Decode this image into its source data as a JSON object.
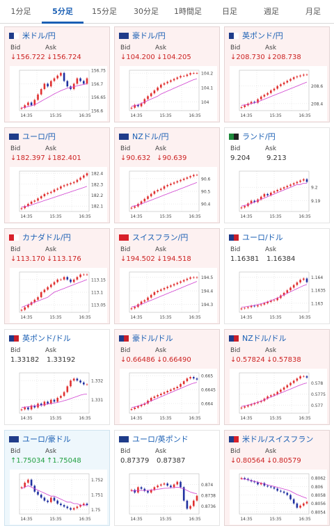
{
  "tabs": [
    "1分足",
    "5分足",
    "15分足",
    "30分足",
    "1時間足",
    "日足",
    "週足",
    "月足"
  ],
  "active_tab": 1,
  "labels": {
    "bid": "Bid",
    "ask": "Ask"
  },
  "colors": {
    "down": "#cc2222",
    "up": "#1e9e3e",
    "flat": "#333333",
    "pair": "#1a5fb4",
    "bull": "#e03030",
    "bear": "#2030a0",
    "ma": "#d040d0",
    "ma2": "#30a0c0"
  },
  "cards": [
    {
      "pair": "米ドル/円",
      "flag": [
        "#1f3c8a",
        "#ffffff"
      ],
      "dir": "down",
      "bid": "↓156.722",
      "ask": "↓156.724",
      "chart_data": {
        "type": "candlestick",
        "x_ticks": [
          "14:35",
          "15:35",
          "16:35"
        ],
        "y_ticks": [
          "156.75",
          "156.7",
          "156.65",
          "156.6"
        ],
        "ylim": [
          156.6,
          156.75
        ],
        "closes": [
          156.61,
          156.62,
          156.63,
          156.62,
          156.64,
          156.66,
          156.68,
          156.7,
          156.69,
          156.71,
          156.72,
          156.73,
          156.74,
          156.71,
          156.69,
          156.68,
          156.7,
          156.72,
          156.71,
          156.7,
          156.72
        ],
        "ma": [
          156.61,
          156.612,
          156.615,
          156.618,
          156.622,
          156.628,
          156.635,
          156.642,
          156.648,
          156.655,
          156.662,
          156.668,
          156.674,
          156.679,
          156.683,
          156.686,
          156.689,
          156.692,
          156.695,
          156.697,
          156.7
        ]
      }
    },
    {
      "pair": "豪ドル/円",
      "flag": [
        "#1f3c8a",
        "#1f3c8a"
      ],
      "dir": "down",
      "bid": "↓104.200",
      "ask": "↓104.205",
      "chart_data": {
        "type": "candlestick",
        "x_ticks": [
          "14:35",
          "15:35",
          "16:35"
        ],
        "y_ticks": [
          "104.2",
          "104.1",
          "104"
        ],
        "ylim": [
          103.94,
          104.22
        ],
        "closes": [
          103.96,
          103.98,
          103.97,
          103.99,
          104.02,
          104.04,
          104.06,
          104.08,
          104.1,
          104.12,
          104.13,
          104.14,
          104.15,
          104.16,
          104.17,
          104.18,
          104.18,
          104.19,
          104.2,
          104.2,
          104.2
        ],
        "ma": [
          103.97,
          103.975,
          103.98,
          103.99,
          104.0,
          104.01,
          104.02,
          104.03,
          104.04,
          104.055,
          104.065,
          104.075,
          104.085,
          104.095,
          104.105,
          104.115,
          104.125,
          104.135,
          104.145,
          104.155,
          104.16
        ]
      }
    },
    {
      "pair": "英ポンド/円",
      "flag": [
        "#1f3c8a",
        "#ffffff"
      ],
      "dir": "down",
      "bid": "↓208.730",
      "ask": "↓208.738",
      "chart_data": {
        "type": "candlestick",
        "x_ticks": [
          "14:35",
          "15:35",
          "16:35"
        ],
        "y_ticks": [
          "208.6",
          "208.4"
        ],
        "ylim": [
          208.32,
          208.78
        ],
        "closes": [
          208.36,
          208.38,
          208.4,
          208.42,
          208.41,
          208.45,
          208.48,
          208.5,
          208.52,
          208.55,
          208.57,
          208.6,
          208.62,
          208.64,
          208.66,
          208.68,
          208.7,
          208.71,
          208.72,
          208.73,
          208.73
        ],
        "ma": [
          208.38,
          208.385,
          208.39,
          208.4,
          208.41,
          208.42,
          208.435,
          208.45,
          208.465,
          208.48,
          208.495,
          208.51,
          208.525,
          208.54,
          208.555,
          208.57,
          208.585,
          208.6,
          208.615,
          208.63,
          208.645
        ]
      }
    },
    {
      "pair": "ユーロ/円",
      "flag": [
        "#1f3c8a",
        "#1f3c8a"
      ],
      "dir": "down",
      "bid": "↓182.397",
      "ask": "↓182.401",
      "chart_data": {
        "type": "candlestick",
        "x_ticks": [
          "14:35",
          "15:35",
          "16:35"
        ],
        "y_ticks": [
          "182.4",
          "182.3",
          "182.2",
          "182.1"
        ],
        "ylim": [
          182.05,
          182.42
        ],
        "closes": [
          182.08,
          182.1,
          182.12,
          182.14,
          182.15,
          182.17,
          182.19,
          182.21,
          182.22,
          182.23,
          182.25,
          182.26,
          182.28,
          182.29,
          182.3,
          182.31,
          182.32,
          182.34,
          182.36,
          182.38,
          182.4
        ],
        "ma": [
          182.09,
          182.095,
          182.1,
          182.11,
          182.12,
          182.13,
          182.14,
          182.15,
          182.16,
          182.17,
          182.18,
          182.19,
          182.2,
          182.21,
          182.22,
          182.23,
          182.24,
          182.25,
          182.26,
          182.27,
          182.28
        ]
      }
    },
    {
      "pair": "NZドル/円",
      "flag": [
        "#1f3c8a",
        "#1f3c8a"
      ],
      "dir": "down",
      "bid": "↓90.632",
      "ask": "↓90.639",
      "chart_data": {
        "type": "candlestick",
        "x_ticks": [
          "14:35",
          "15:35",
          "16:35"
        ],
        "y_ticks": [
          "90.6",
          "90.5",
          "90.4"
        ],
        "ylim": [
          90.34,
          90.66
        ],
        "closes": [
          90.37,
          90.38,
          90.4,
          90.42,
          90.44,
          90.46,
          90.48,
          90.5,
          90.51,
          90.52,
          90.54,
          90.55,
          90.56,
          90.57,
          90.58,
          90.59,
          90.6,
          90.61,
          90.62,
          90.63,
          90.63
        ],
        "ma": [
          90.38,
          90.385,
          90.39,
          90.4,
          90.41,
          90.42,
          90.43,
          90.44,
          90.45,
          90.46,
          90.47,
          90.48,
          90.49,
          90.5,
          90.51,
          90.52,
          90.53,
          90.54,
          90.55,
          90.56,
          90.57
        ]
      }
    },
    {
      "pair": "ランド/円",
      "flag": [
        "#1e8a3c",
        "#222222"
      ],
      "dir": "flat",
      "bid": "9.204",
      "ask": "9.213",
      "chart_data": {
        "type": "candlestick",
        "x_ticks": [
          "14:35",
          "15:35",
          "16:35"
        ],
        "y_ticks": [
          "9.2",
          "9.19"
        ],
        "ylim": [
          9.182,
          9.212
        ],
        "closes": [
          9.185,
          9.186,
          9.188,
          9.19,
          9.189,
          9.191,
          9.193,
          9.195,
          9.194,
          9.196,
          9.197,
          9.198,
          9.199,
          9.2,
          9.201,
          9.202,
          9.203,
          9.204,
          9.205,
          9.206,
          9.204
        ],
        "ma": [
          9.186,
          9.1865,
          9.187,
          9.188,
          9.189,
          9.19,
          9.191,
          9.192,
          9.193,
          9.194,
          9.195,
          9.196,
          9.197,
          9.198,
          9.199,
          9.2,
          9.201,
          9.202,
          9.202,
          9.203,
          9.203
        ]
      }
    },
    {
      "pair": "カナダドル/円",
      "flag": [
        "#d8202a",
        "#ffffff"
      ],
      "dir": "down",
      "bid": "↓113.170",
      "ask": "↓113.176",
      "chart_data": {
        "type": "candlestick",
        "x_ticks": [
          "14:35",
          "15:35",
          "16:35"
        ],
        "y_ticks": [
          "113.15",
          "113.1",
          "113.05"
        ],
        "ylim": [
          113.02,
          113.18
        ],
        "closes": [
          113.03,
          113.04,
          113.05,
          113.06,
          113.07,
          113.08,
          113.1,
          113.11,
          113.12,
          113.13,
          113.14,
          113.15,
          113.15,
          113.16,
          113.15,
          113.14,
          113.15,
          113.16,
          113.17,
          113.17,
          113.17
        ],
        "ma": [
          113.04,
          113.045,
          113.05,
          113.055,
          113.06,
          113.065,
          113.07,
          113.075,
          113.08,
          113.09,
          113.1,
          113.105,
          113.11,
          113.115,
          113.12,
          113.125,
          113.13,
          113.135,
          113.14,
          113.145,
          113.15
        ]
      }
    },
    {
      "pair": "スイスフラン/円",
      "flag": [
        "#d8202a",
        "#d8202a"
      ],
      "dir": "down",
      "bid": "↓194.502",
      "ask": "↓194.518",
      "chart_data": {
        "type": "candlestick",
        "x_ticks": [
          "14:35",
          "15:35",
          "16:35"
        ],
        "y_ticks": [
          "194.5",
          "194.4",
          "194.3"
        ],
        "ylim": [
          194.24,
          194.54
        ],
        "closes": [
          194.27,
          194.28,
          194.3,
          194.32,
          194.33,
          194.35,
          194.37,
          194.39,
          194.4,
          194.41,
          194.42,
          194.43,
          194.44,
          194.45,
          194.46,
          194.47,
          194.48,
          194.49,
          194.5,
          194.5,
          194.5
        ],
        "ma": [
          194.28,
          194.285,
          194.29,
          194.3,
          194.31,
          194.32,
          194.33,
          194.34,
          194.35,
          194.36,
          194.37,
          194.38,
          194.39,
          194.4,
          194.41,
          194.42,
          194.43,
          194.44,
          194.45,
          194.46,
          194.47
        ]
      }
    },
    {
      "pair": "ユーロ/ドル",
      "flag": [
        "#1f3c8a",
        "#c8202a"
      ],
      "dir": "flat",
      "bid": "1.16381",
      "ask": "1.16384",
      "chart_data": {
        "type": "candlestick",
        "x_ticks": [
          "14:35",
          "15:35",
          "16:35"
        ],
        "y_ticks": [
          "1.164",
          "1.1635",
          "1.163"
        ],
        "ylim": [
          1.16265,
          1.1642
        ],
        "closes": [
          1.1628,
          1.16282,
          1.16285,
          1.1629,
          1.16288,
          1.16292,
          1.16295,
          1.163,
          1.16305,
          1.1631,
          1.16312,
          1.1632,
          1.1633,
          1.1634,
          1.1635,
          1.1636,
          1.1637,
          1.1638,
          1.1639,
          1.16395,
          1.16381
        ],
        "ma": [
          1.16285,
          1.16286,
          1.16288,
          1.1629,
          1.16292,
          1.16295,
          1.16298,
          1.16302,
          1.16306,
          1.1631,
          1.16315,
          1.1632,
          1.16326,
          1.16332,
          1.16338,
          1.16344,
          1.1635,
          1.16356,
          1.16362,
          1.16368,
          1.16372
        ]
      }
    },
    {
      "pair": "英ポンド/ドル",
      "flag": [
        "#1f3c8a",
        "#c8202a"
      ],
      "dir": "flat",
      "bid": "1.33182",
      "ask": "1.33192",
      "chart_data": {
        "type": "candlestick",
        "x_ticks": [
          "14:35",
          "15:35",
          "16:35"
        ],
        "y_ticks": [
          "1.332",
          "1.331"
        ],
        "ylim": [
          1.3303,
          1.3324
        ],
        "closes": [
          1.3305,
          1.3306,
          1.3305,
          1.3307,
          1.3306,
          1.3308,
          1.3307,
          1.3309,
          1.3308,
          1.331,
          1.3309,
          1.3311,
          1.3312,
          1.3314,
          1.3317,
          1.332,
          1.3321,
          1.332,
          1.3319,
          1.3318,
          1.3318
        ],
        "ma": [
          1.3306,
          1.33062,
          1.33064,
          1.33066,
          1.33068,
          1.3307,
          1.33072,
          1.33075,
          1.33078,
          1.3308,
          1.33083,
          1.33086,
          1.3309,
          1.33095,
          1.331,
          1.33106,
          1.33112,
          1.33118,
          1.33124,
          1.33128,
          1.3313
        ]
      }
    },
    {
      "pair": "豪ドル/ドル",
      "flag": [
        "#1f3c8a",
        "#c8202a"
      ],
      "dir": "down",
      "bid": "↓0.66486",
      "ask": "↓0.66490",
      "chart_data": {
        "type": "candlestick",
        "x_ticks": [
          "14:35",
          "15:35",
          "16:35"
        ],
        "y_ticks": [
          "0.665",
          "0.6645",
          "0.664"
        ],
        "ylim": [
          0.66365,
          0.6651
        ],
        "closes": [
          0.6638,
          0.66385,
          0.6639,
          0.66395,
          0.664,
          0.6641,
          0.6642,
          0.66425,
          0.6643,
          0.66435,
          0.6644,
          0.66445,
          0.6645,
          0.66455,
          0.6646,
          0.6647,
          0.6648,
          0.6649,
          0.66495,
          0.6649,
          0.66486
        ],
        "ma": [
          0.66385,
          0.66388,
          0.66391,
          0.66395,
          0.66399,
          0.66404,
          0.66409,
          0.66414,
          0.66419,
          0.66424,
          0.66429,
          0.66434,
          0.66439,
          0.66444,
          0.66449,
          0.66454,
          0.66459,
          0.66464,
          0.66469,
          0.66473,
          0.66476
        ]
      }
    },
    {
      "pair": "NZドル/ドル",
      "flag": [
        "#1f3c8a",
        "#c8202a"
      ],
      "dir": "down",
      "bid": "↓0.57824",
      "ask": "↓0.57838",
      "chart_data": {
        "type": "candlestick",
        "x_ticks": [
          "14:35",
          "15:35",
          "16:35"
        ],
        "y_ticks": [
          "0.578",
          "0.5775",
          "0.577"
        ],
        "ylim": [
          0.57665,
          0.57845
        ],
        "closes": [
          0.5769,
          0.57695,
          0.577,
          0.57705,
          0.5771,
          0.57715,
          0.5772,
          0.5773,
          0.5774,
          0.57745,
          0.5775,
          0.5776,
          0.5777,
          0.5778,
          0.5779,
          0.578,
          0.5781,
          0.5782,
          0.5783,
          0.5783,
          0.57824
        ],
        "ma": [
          0.57695,
          0.57698,
          0.57701,
          0.57705,
          0.57709,
          0.57714,
          0.57719,
          0.57725,
          0.57731,
          0.57737,
          0.57743,
          0.57749,
          0.57755,
          0.57761,
          0.57767,
          0.57773,
          0.57779,
          0.57785,
          0.57791,
          0.57796,
          0.578
        ]
      }
    },
    {
      "pair": "ユーロ/豪ドル",
      "flag": [
        "#1f3c8a",
        "#1f3c8a"
      ],
      "dir": "up",
      "bid": "↑1.75034",
      "ask": "↑1.75048",
      "chart_data": {
        "type": "candlestick",
        "x_ticks": [
          "14:35",
          "15:35",
          "16:35"
        ],
        "y_ticks": [
          "1.752",
          "1.751",
          "1.75"
        ],
        "ylim": [
          1.7497,
          1.7524
        ],
        "closes": [
          1.7515,
          1.7518,
          1.752,
          1.7516,
          1.7512,
          1.751,
          1.7508,
          1.7506,
          1.7505,
          1.7508,
          1.7506,
          1.7504,
          1.7503,
          1.7502,
          1.7501,
          1.75,
          1.7501,
          1.7502,
          1.7503,
          1.7504,
          1.7503
        ],
        "ma": [
          1.7514,
          1.7515,
          1.7516,
          1.7515,
          1.7514,
          1.7513,
          1.7512,
          1.7511,
          1.751,
          1.7509,
          1.7509,
          1.7508,
          1.7507,
          1.7506,
          1.7505,
          1.7505,
          1.7504,
          1.7504,
          1.7503,
          1.7503,
          1.7503
        ]
      }
    },
    {
      "pair": "ユーロ/英ポンド",
      "flag": [
        "#1f3c8a",
        "#1f3c8a"
      ],
      "dir": "flat",
      "bid": "0.87379",
      "ask": "0.87387",
      "chart_data": {
        "type": "candlestick",
        "x_ticks": [
          "14:35",
          "15:35",
          "16:35"
        ],
        "y_ticks": [
          "0.874",
          "0.8738",
          "0.8736"
        ],
        "ylim": [
          0.87345,
          0.8742
        ],
        "closes": [
          0.8739,
          0.87385,
          0.87395,
          0.87392,
          0.87388,
          0.87385,
          0.8739,
          0.87395,
          0.87398,
          0.874,
          0.87402,
          0.87398,
          0.87395,
          0.874,
          0.87405,
          0.87395,
          0.8737,
          0.87355,
          0.8736,
          0.8737,
          0.87379
        ],
        "ma": [
          0.87388,
          0.87388,
          0.87389,
          0.87389,
          0.87389,
          0.87389,
          0.8739,
          0.8739,
          0.87391,
          0.87392,
          0.87393,
          0.87393,
          0.87394,
          0.87394,
          0.87395,
          0.87394,
          0.87392,
          0.87389,
          0.87386,
          0.87384,
          0.87383
        ]
      }
    },
    {
      "pair": "米ドル/スイスフラン",
      "flag": [
        "#1f3c8a",
        "#d8202a"
      ],
      "dir": "down",
      "bid": "↓0.80564",
      "ask": "↓0.80579",
      "chart_data": {
        "type": "candlestick",
        "x_ticks": [
          "14:35",
          "15:35",
          "16:35"
        ],
        "y_ticks": [
          "0.8062",
          "0.806",
          "0.8058",
          "0.8056",
          "0.8054"
        ],
        "ylim": [
          0.80535,
          0.8063
        ],
        "closes": [
          0.8062,
          0.80618,
          0.80615,
          0.80612,
          0.8061,
          0.80605,
          0.80608,
          0.80602,
          0.806,
          0.80598,
          0.80595,
          0.8059,
          0.80588,
          0.80585,
          0.8058,
          0.8057,
          0.8056,
          0.8055,
          0.80555,
          0.8056,
          0.80564
        ],
        "ma": [
          0.80618,
          0.80617,
          0.80616,
          0.80614,
          0.80612,
          0.8061,
          0.80608,
          0.80606,
          0.80604,
          0.80602,
          0.806,
          0.80598,
          0.80596,
          0.80594,
          0.80592,
          0.80589,
          0.80585,
          0.80581,
          0.80578,
          0.80575,
          0.80572
        ]
      }
    }
  ]
}
